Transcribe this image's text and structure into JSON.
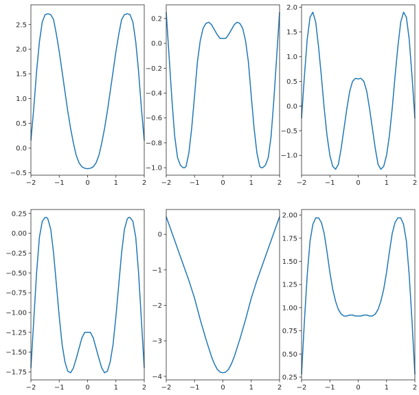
{
  "figure": {
    "line_color": "#1f77b4",
    "grid": false,
    "subplot_layout": {
      "rows": 2,
      "cols": 3
    }
  },
  "chart_data": [
    {
      "type": "line",
      "xlim": [
        -2,
        2
      ],
      "ylim": [
        -0.55,
        2.9
      ],
      "xticks": [
        -2,
        -1,
        0,
        1,
        2
      ],
      "xtick_labels": [
        "−2",
        "−1",
        "0",
        "1",
        "2"
      ],
      "yticks": [
        -0.5,
        0,
        0.5,
        1,
        1.5,
        2,
        2.5
      ],
      "ytick_labels": [
        "−0.5",
        "0.0",
        "0.5",
        "1.0",
        "1.5",
        "2.0",
        "2.5"
      ],
      "series": [
        {
          "x": [
            -2,
            -1.9,
            -1.8,
            -1.7,
            -1.6,
            -1.5,
            -1.4,
            -1.3,
            -1.2,
            -1.1,
            -1.0,
            -0.9,
            -0.8,
            -0.7,
            -0.6,
            -0.5,
            -0.4,
            -0.3,
            -0.2,
            -0.1,
            0,
            0.1,
            0.2,
            0.3,
            0.4,
            0.5,
            0.6,
            0.7,
            0.8,
            0.9,
            1.0,
            1.1,
            1.2,
            1.3,
            1.4,
            1.5,
            1.6,
            1.7,
            1.8,
            1.9,
            2
          ],
          "y": [
            0.15,
            0.8,
            1.55,
            2.15,
            2.55,
            2.7,
            2.72,
            2.7,
            2.6,
            2.3,
            1.95,
            1.55,
            1.15,
            0.75,
            0.4,
            0.1,
            -0.15,
            -0.3,
            -0.38,
            -0.41,
            -0.42,
            -0.41,
            -0.38,
            -0.3,
            -0.15,
            0.1,
            0.4,
            0.75,
            1.15,
            1.55,
            1.95,
            2.3,
            2.6,
            2.7,
            2.72,
            2.7,
            2.55,
            2.15,
            1.55,
            0.8,
            0.15
          ]
        }
      ]
    },
    {
      "type": "line",
      "xlim": [
        -2,
        2
      ],
      "ylim": [
        -1.06,
        0.31
      ],
      "xticks": [
        -2,
        -1,
        0,
        1,
        2
      ],
      "xtick_labels": [
        "−2",
        "−1",
        "0",
        "1",
        "2"
      ],
      "yticks": [
        -1.0,
        -0.8,
        -0.6,
        -0.4,
        -0.2,
        0,
        0.2
      ],
      "ytick_labels": [
        "−1.0",
        "−0.8",
        "−0.6",
        "−0.4",
        "−0.2",
        "0.0",
        "0.2"
      ],
      "series": [
        {
          "x": [
            -2,
            -1.9,
            -1.8,
            -1.7,
            -1.6,
            -1.5,
            -1.4,
            -1.35,
            -1.3,
            -1.2,
            -1.1,
            -1.0,
            -0.9,
            -0.8,
            -0.7,
            -0.6,
            -0.5,
            -0.4,
            -0.3,
            -0.2,
            -0.1,
            0,
            0.1,
            0.2,
            0.3,
            0.4,
            0.5,
            0.6,
            0.7,
            0.8,
            0.9,
            1.0,
            1.1,
            1.2,
            1.3,
            1.35,
            1.4,
            1.5,
            1.6,
            1.7,
            1.8,
            1.9,
            2
          ],
          "y": [
            0.25,
            -0.1,
            -0.45,
            -0.75,
            -0.92,
            -0.98,
            -1.0,
            -1.0,
            -0.99,
            -0.88,
            -0.68,
            -0.42,
            -0.15,
            0.02,
            0.12,
            0.16,
            0.17,
            0.15,
            0.11,
            0.07,
            0.04,
            0.04,
            0.04,
            0.07,
            0.11,
            0.15,
            0.17,
            0.16,
            0.12,
            0.02,
            -0.15,
            -0.42,
            -0.68,
            -0.88,
            -0.99,
            -1.0,
            -1.0,
            -0.98,
            -0.92,
            -0.75,
            -0.45,
            -0.1,
            0.25
          ]
        }
      ]
    },
    {
      "type": "line",
      "xlim": [
        -2,
        2
      ],
      "ylim": [
        -1.4,
        2.05
      ],
      "xticks": [
        -2,
        -1,
        0,
        1,
        2
      ],
      "xtick_labels": [
        "−2",
        "−1",
        "0",
        "1",
        "2"
      ],
      "yticks": [
        -1.0,
        -0.5,
        0,
        0.5,
        1.0,
        1.5,
        2.0
      ],
      "ytick_labels": [
        "−1.0",
        "−0.5",
        "0.0",
        "0.5",
        "1.0",
        "1.5",
        "2.0"
      ],
      "series": [
        {
          "x": [
            -2,
            -1.9,
            -1.8,
            -1.7,
            -1.6,
            -1.5,
            -1.4,
            -1.3,
            -1.2,
            -1.1,
            -1.0,
            -0.9,
            -0.8,
            -0.7,
            -0.6,
            -0.5,
            -0.4,
            -0.3,
            -0.2,
            -0.1,
            0,
            0.1,
            0.2,
            0.3,
            0.4,
            0.5,
            0.6,
            0.7,
            0.8,
            0.9,
            1.0,
            1.1,
            1.2,
            1.3,
            1.4,
            1.5,
            1.6,
            1.7,
            1.8,
            1.9,
            2
          ],
          "y": [
            -0.25,
            0.6,
            1.35,
            1.8,
            1.9,
            1.7,
            1.2,
            0.6,
            -0.05,
            -0.6,
            -1.0,
            -1.22,
            -1.28,
            -1.18,
            -0.85,
            -0.45,
            -0.05,
            0.3,
            0.5,
            0.56,
            0.55,
            0.56,
            0.5,
            0.3,
            -0.05,
            -0.45,
            -0.85,
            -1.18,
            -1.28,
            -1.22,
            -1.0,
            -0.6,
            -0.05,
            0.6,
            1.2,
            1.7,
            1.9,
            1.8,
            1.35,
            0.6,
            -0.25
          ]
        }
      ]
    },
    {
      "type": "line",
      "xlim": [
        -2,
        2
      ],
      "ylim": [
        -1.85,
        0.3
      ],
      "xticks": [
        -2,
        -1,
        0,
        1,
        2
      ],
      "xtick_labels": [
        "−2",
        "−1",
        "0",
        "1",
        "2"
      ],
      "yticks": [
        -1.75,
        -1.5,
        -1.25,
        -1.0,
        -0.75,
        -0.5,
        -0.25,
        0,
        0.25
      ],
      "ytick_labels": [
        "−1.75",
        "−1.50",
        "−1.25",
        "−1.00",
        "−0.75",
        "−0.50",
        "−0.25",
        "0.00",
        "0.25"
      ],
      "series": [
        {
          "x": [
            -2,
            -1.9,
            -1.8,
            -1.7,
            -1.6,
            -1.5,
            -1.45,
            -1.4,
            -1.3,
            -1.2,
            -1.1,
            -1.0,
            -0.9,
            -0.8,
            -0.7,
            -0.6,
            -0.5,
            -0.4,
            -0.3,
            -0.2,
            -0.1,
            0,
            0.1,
            0.2,
            0.3,
            0.4,
            0.5,
            0.6,
            0.7,
            0.8,
            0.9,
            1.0,
            1.1,
            1.2,
            1.3,
            1.4,
            1.45,
            1.5,
            1.6,
            1.7,
            1.8,
            1.9,
            2
          ],
          "y": [
            -1.7,
            -1.1,
            -0.5,
            -0.05,
            0.15,
            0.2,
            0.2,
            0.18,
            0.05,
            -0.25,
            -0.65,
            -1.05,
            -1.4,
            -1.62,
            -1.74,
            -1.76,
            -1.7,
            -1.58,
            -1.45,
            -1.32,
            -1.25,
            -1.25,
            -1.25,
            -1.32,
            -1.45,
            -1.58,
            -1.7,
            -1.76,
            -1.74,
            -1.62,
            -1.4,
            -1.05,
            -0.65,
            -0.25,
            0.05,
            0.18,
            0.2,
            0.2,
            0.15,
            -0.05,
            -0.5,
            -1.1,
            -1.7
          ]
        }
      ]
    },
    {
      "type": "line",
      "xlim": [
        -2,
        2
      ],
      "ylim": [
        -4.1,
        0.7
      ],
      "xticks": [
        -2,
        -1,
        0,
        1,
        2
      ],
      "xtick_labels": [
        "−2",
        "−1",
        "0",
        "1",
        "2"
      ],
      "yticks": [
        -4,
        -3,
        -2,
        -1,
        0
      ],
      "ytick_labels": [
        "−4",
        "−3",
        "−2",
        "−1",
        "0"
      ],
      "series": [
        {
          "x": [
            -2,
            -1.8,
            -1.6,
            -1.4,
            -1.2,
            -1.0,
            -0.8,
            -0.6,
            -0.4,
            -0.3,
            -0.2,
            -0.1,
            0,
            0.1,
            0.2,
            0.3,
            0.4,
            0.6,
            0.8,
            1.0,
            1.2,
            1.4,
            1.6,
            1.8,
            2
          ],
          "y": [
            0.5,
            0.05,
            -0.4,
            -0.85,
            -1.3,
            -1.8,
            -2.4,
            -2.95,
            -3.45,
            -3.65,
            -3.8,
            -3.88,
            -3.9,
            -3.88,
            -3.8,
            -3.65,
            -3.45,
            -2.95,
            -2.4,
            -1.8,
            -1.3,
            -0.85,
            -0.4,
            0.05,
            0.5
          ]
        }
      ]
    },
    {
      "type": "line",
      "xlim": [
        -2,
        2
      ],
      "ylim": [
        0.22,
        2.06
      ],
      "xticks": [
        -2,
        -1,
        0,
        1,
        2
      ],
      "xtick_labels": [
        "−2",
        "−1",
        "0",
        "1",
        "2"
      ],
      "yticks": [
        0.25,
        0.5,
        0.75,
        1.0,
        1.25,
        1.5,
        1.75,
        2.0
      ],
      "ytick_labels": [
        "0.25",
        "0.50",
        "0.75",
        "1.00",
        "1.25",
        "1.50",
        "1.75",
        "2.00"
      ],
      "series": [
        {
          "x": [
            -2,
            -1.9,
            -1.8,
            -1.7,
            -1.6,
            -1.5,
            -1.4,
            -1.3,
            -1.2,
            -1.1,
            -1.0,
            -0.9,
            -0.8,
            -0.7,
            -0.6,
            -0.5,
            -0.4,
            -0.3,
            -0.2,
            -0.1,
            0,
            0.1,
            0.2,
            0.3,
            0.4,
            0.5,
            0.6,
            0.7,
            0.8,
            0.9,
            1.0,
            1.1,
            1.2,
            1.3,
            1.4,
            1.5,
            1.6,
            1.7,
            1.8,
            1.9,
            2
          ],
          "y": [
            0.28,
            0.85,
            1.35,
            1.72,
            1.9,
            1.97,
            1.97,
            1.92,
            1.8,
            1.6,
            1.38,
            1.2,
            1.07,
            0.98,
            0.93,
            0.91,
            0.91,
            0.92,
            0.92,
            0.91,
            0.91,
            0.91,
            0.92,
            0.92,
            0.91,
            0.91,
            0.93,
            0.98,
            1.07,
            1.2,
            1.38,
            1.6,
            1.8,
            1.92,
            1.97,
            1.97,
            1.9,
            1.72,
            1.35,
            0.85,
            0.28
          ]
        }
      ]
    }
  ]
}
